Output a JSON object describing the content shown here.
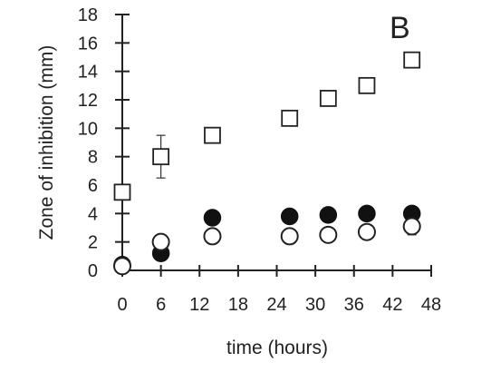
{
  "chart_data": {
    "type": "scatter",
    "panel_label": "B",
    "title": "",
    "xlabel": "time (hours)",
    "ylabel": "Zone of inhibition (mm)",
    "xlim": [
      0,
      48
    ],
    "ylim": [
      0,
      18
    ],
    "xticks": [
      0,
      6,
      12,
      18,
      24,
      30,
      36,
      42,
      48
    ],
    "yticks": [
      0,
      2,
      4,
      6,
      8,
      10,
      12,
      14,
      16,
      18
    ],
    "grid": false,
    "legend": "none",
    "series": [
      {
        "marker": "open-square",
        "x": [
          0,
          6,
          14,
          26,
          32,
          38,
          45
        ],
        "y": [
          5.5,
          8.0,
          9.5,
          10.7,
          12.1,
          13.0,
          14.8
        ],
        "err": [
          0,
          1.5,
          0,
          0,
          0,
          0,
          0
        ]
      },
      {
        "marker": "filled-circle",
        "x": [
          0,
          6,
          14,
          26,
          32,
          38,
          45
        ],
        "y": [
          0.4,
          1.2,
          3.7,
          3.8,
          3.9,
          4.0,
          4.0
        ],
        "err": [
          0,
          0,
          0.5,
          0,
          0,
          0.4,
          0.3
        ]
      },
      {
        "marker": "open-circle",
        "x": [
          0,
          6,
          14,
          26,
          32,
          38,
          45
        ],
        "y": [
          0.3,
          2.0,
          2.4,
          2.4,
          2.5,
          2.7,
          3.1
        ],
        "err": [
          0,
          0,
          0,
          0.4,
          0.3,
          0,
          0.6
        ]
      }
    ]
  }
}
